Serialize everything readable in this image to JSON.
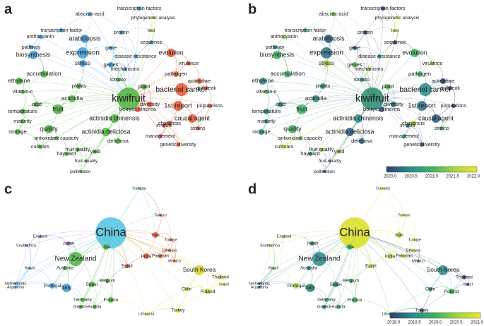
{
  "panels": [
    {
      "letter": "a",
      "nodes": [
        {
          "label": "kiwifruit",
          "color": "#4db33d"
        },
        {
          "label": "expression",
          "color": "#3e9ad6"
        },
        {
          "label": "biosynthesis",
          "color": "#3e9ad6"
        },
        {
          "label": "arabidopsis",
          "color": "#3e9ad6"
        },
        {
          "label": "abscisic-acid",
          "color": "#3e9ad6"
        },
        {
          "label": "transcription factors",
          "color": "#3e9ad6"
        },
        {
          "label": "phylogenetic analysis",
          "color": "#d4d41e"
        },
        {
          "label": "transcription factor",
          "color": "#3e9ad6"
        },
        {
          "label": "anthocyanin",
          "color": "#3e9ad6"
        },
        {
          "label": "pathway",
          "color": "#3e9ad6"
        },
        {
          "label": "protein",
          "color": "#3e9ad6"
        },
        {
          "label": "tool",
          "color": "#d4d41e"
        },
        {
          "label": "sequence",
          "color": "#3e9ad6"
        },
        {
          "label": "gene",
          "color": "#3e9ad6"
        },
        {
          "label": "evolution",
          "color": "#e8542f"
        },
        {
          "label": "disease resistance",
          "color": "#3e9ad6"
        },
        {
          "label": "stress",
          "color": "#3e9ad6"
        },
        {
          "label": "genes",
          "color": "#3e9ad6"
        },
        {
          "label": "mechanisms",
          "color": "#3e9ad6"
        },
        {
          "label": "accumulation",
          "color": "#4db33d"
        },
        {
          "label": "tomato",
          "color": "#4db33d"
        },
        {
          "label": "pathogen",
          "color": "#e8542f"
        },
        {
          "label": "virulence",
          "color": "#e8542f"
        },
        {
          "label": "actinidiae",
          "color": "#e8542f"
        },
        {
          "label": "outbreak",
          "color": "#e8542f"
        },
        {
          "label": "ethylene",
          "color": "#4db33d"
        },
        {
          "label": "plants",
          "color": "#4db33d"
        },
        {
          "label": "plant",
          "color": "#4db33d"
        },
        {
          "label": "bacterial canker",
          "color": "#e8542f"
        },
        {
          "label": "vitamin-c",
          "color": "#4db33d"
        },
        {
          "label": "acid",
          "color": "#4db33d"
        },
        {
          "label": "actinidia",
          "color": "#4db33d"
        },
        {
          "label": "diversity",
          "color": "#e8542f"
        },
        {
          "label": "1st report",
          "color": "#e8542f"
        },
        {
          "label": "populations",
          "color": "#e8542f"
        },
        {
          "label": "fruit",
          "color": "#4db33d"
        },
        {
          "label": "botrytis cinerea",
          "color": "#e8542f"
        },
        {
          "label": "actinidia chinensis",
          "color": "#4db33d"
        },
        {
          "label": "temperature",
          "color": "#4db33d"
        },
        {
          "label": "causal agent",
          "color": "#e8542f"
        },
        {
          "label": "maturity",
          "color": "#4db33d"
        },
        {
          "label": "quality",
          "color": "#4db33d"
        },
        {
          "label": "chinensis",
          "color": "#e8542f"
        },
        {
          "label": "in-vitro",
          "color": "#e8542f"
        },
        {
          "label": "strains",
          "color": "#e8542f"
        },
        {
          "label": "storage",
          "color": "#4db33d"
        },
        {
          "label": "actinidia deliciosa",
          "color": "#4db33d"
        },
        {
          "label": "antioxidant capacity",
          "color": "#4db33d"
        },
        {
          "label": "management",
          "color": "#e8542f"
        },
        {
          "label": "cultivars",
          "color": "#4db33d"
        },
        {
          "label": "deliciosa",
          "color": "#4db33d"
        },
        {
          "label": "fruit quality",
          "color": "#4db33d"
        },
        {
          "label": "genetic diversity",
          "color": "#e8542f"
        },
        {
          "label": "hayward",
          "color": "#4db33d"
        },
        {
          "label": "yield",
          "color": "#4db33d"
        },
        {
          "label": "fruit-quality",
          "color": "#4db33d"
        },
        {
          "label": "pollination",
          "color": "#4db33d"
        }
      ]
    },
    {
      "letter": "b",
      "nodes": [
        {
          "label": "kiwifruit",
          "color": "#2a8a6e"
        },
        {
          "label": "expression",
          "color": "#2a6f8a"
        },
        {
          "label": "biosynthesis",
          "color": "#3cb35f"
        },
        {
          "label": "arabidopsis",
          "color": "#2c5a7e"
        },
        {
          "label": "abscisic-acid",
          "color": "#5cc24a"
        },
        {
          "label": "transcription factors",
          "color": "#2c4a7e"
        },
        {
          "label": "phylogenetic analysis",
          "color": "#e8e82a"
        },
        {
          "label": "transcription factor",
          "color": "#3cb35f"
        },
        {
          "label": "anthocyanin",
          "color": "#a6d63a"
        },
        {
          "label": "pathway",
          "color": "#2a8a8a"
        },
        {
          "label": "protein",
          "color": "#2c4a7e"
        },
        {
          "label": "tool",
          "color": "#e8e82a"
        },
        {
          "label": "sequence",
          "color": "#2c3e6e"
        },
        {
          "label": "gene",
          "color": "#2c4a7e"
        },
        {
          "label": "evolution",
          "color": "#3cb35f"
        },
        {
          "label": "disease resistance",
          "color": "#2a8a8a"
        },
        {
          "label": "stress",
          "color": "#a6d63a"
        },
        {
          "label": "genes",
          "color": "#5cc24a"
        },
        {
          "label": "mechanisms",
          "color": "#a6d63a"
        },
        {
          "label": "accumulation",
          "color": "#3cb35f"
        },
        {
          "label": "tomato",
          "color": "#2a8a8a"
        },
        {
          "label": "pathogen",
          "color": "#3cb35f"
        },
        {
          "label": "virulence",
          "color": "#a6d63a"
        },
        {
          "label": "actinidiae",
          "color": "#2c3e6e"
        },
        {
          "label": "outbreak",
          "color": "#2c3e6e"
        },
        {
          "label": "ethylene",
          "color": "#2a8a8a"
        },
        {
          "label": "plants",
          "color": "#2a8a8a"
        },
        {
          "label": "plant",
          "color": "#5cc24a"
        },
        {
          "label": "bacterial canker",
          "color": "#2a8a8a"
        },
        {
          "label": "vitamin-c",
          "color": "#3cb35f"
        },
        {
          "label": "acid",
          "color": "#2a8a8a"
        },
        {
          "label": "actinidia",
          "color": "#2a8a8a"
        },
        {
          "label": "diversity",
          "color": "#2c5a7e"
        },
        {
          "label": "1st report",
          "color": "#2a6f8a"
        },
        {
          "label": "populations",
          "color": "#2c3e6e"
        },
        {
          "label": "fruit",
          "color": "#3cb35f"
        },
        {
          "label": "botrytis cinerea",
          "color": "#2c4a7e"
        },
        {
          "label": "actinidia chinensis",
          "color": "#2a8a8a"
        },
        {
          "label": "temperature",
          "color": "#2a8a8a"
        },
        {
          "label": "causal agent",
          "color": "#2c5a7e"
        },
        {
          "label": "maturity",
          "color": "#2a8a8a"
        },
        {
          "label": "quality",
          "color": "#3cb35f"
        },
        {
          "label": "chinensis",
          "color": "#a6d63a"
        },
        {
          "label": "in-vitro",
          "color": "#2a8a8a"
        },
        {
          "label": "strains",
          "color": "#3cb35f"
        },
        {
          "label": "storage",
          "color": "#2a8a8a"
        },
        {
          "label": "actinidia deliciosa",
          "color": "#2c5a7e"
        },
        {
          "label": "antioxidant capacity",
          "color": "#5cc24a"
        },
        {
          "label": "management",
          "color": "#3cb35f"
        },
        {
          "label": "cultivars",
          "color": "#e8e82a"
        },
        {
          "label": "deliciosa",
          "color": "#2c5a7e"
        },
        {
          "label": "fruit quality",
          "color": "#a6d63a"
        },
        {
          "label": "genetic diversity",
          "color": "#2c4a7e"
        },
        {
          "label": "hayward",
          "color": "#2a8a8a"
        },
        {
          "label": "yield",
          "color": "#a6d63a"
        },
        {
          "label": "fruit-quality",
          "color": "#2a8a8a"
        },
        {
          "label": "pollination",
          "color": "#2c3e6e"
        }
      ],
      "colorbar": {
        "ticks": [
          "2020.0",
          "2020.5",
          "2021.0",
          "2021.5",
          "2022.0"
        ],
        "colors": [
          "#2c3e6e",
          "#2a8a8a",
          "#3cb35f",
          "#a6d63a",
          "#e8e82a"
        ]
      }
    },
    {
      "letter": "c",
      "nodes": [
        {
          "label": "China",
          "color": "#4fc4e0"
        },
        {
          "label": "Canada",
          "color": "#4fc4e0"
        },
        {
          "label": "Taiwan",
          "color": "#e8542f"
        },
        {
          "label": "Japan",
          "color": "#8a6fd0"
        },
        {
          "label": "England",
          "color": "#8a6fd0"
        },
        {
          "label": "Southafrica",
          "color": "#8a6fd0"
        },
        {
          "label": "Iran",
          "color": "#e8542f"
        },
        {
          "label": "Turkiye",
          "color": "#e8542f"
        },
        {
          "label": "Usa",
          "color": "#4db33d"
        },
        {
          "label": "Ethiopia",
          "color": "#e8542f"
        },
        {
          "label": "India",
          "color": "#e8542f"
        },
        {
          "label": "Pakistan",
          "color": "#e8542f"
        },
        {
          "label": "New Zealand",
          "color": "#4db33d"
        },
        {
          "label": "Mexico",
          "color": "#e8542f"
        },
        {
          "label": "Brazil",
          "color": "#3e9ad6"
        },
        {
          "label": "Australia",
          "color": "#4db33d"
        },
        {
          "label": "Egypt",
          "color": "#e8542f"
        },
        {
          "label": "South Korea",
          "color": "#d4d41e"
        },
        {
          "label": "Netherlands",
          "color": "#3e9ad6"
        },
        {
          "label": "Argentina",
          "color": "#3e9ad6"
        },
        {
          "label": "Portugal",
          "color": "#3e9ad6"
        },
        {
          "label": "Spain",
          "color": "#4db33d"
        },
        {
          "label": "Belgium",
          "color": "#4db33d"
        },
        {
          "label": "Thailand",
          "color": "#d4d41e"
        },
        {
          "label": "Israel",
          "color": "#d4d41e"
        },
        {
          "label": "Italy",
          "color": "#3e9ad6"
        },
        {
          "label": "Chile",
          "color": "#d4d41e"
        },
        {
          "label": "Poland",
          "color": "#d4d41e"
        },
        {
          "label": "Germany",
          "color": "#4db33d"
        },
        {
          "label": "France",
          "color": "#4db33d"
        },
        {
          "label": "Greece",
          "color": "#4db33d"
        },
        {
          "label": "Austria",
          "color": "#4db33d"
        },
        {
          "label": "Turkey",
          "color": "#d4d41e"
        },
        {
          "label": "Lithuania",
          "color": "#d4d41e"
        }
      ]
    },
    {
      "letter": "d",
      "nodes": [
        {
          "label": "China",
          "color": "#d8e020"
        },
        {
          "label": "Canada",
          "color": "#e8e82a"
        },
        {
          "label": "Taiwan",
          "color": "#e8e82a"
        },
        {
          "label": "Japan",
          "color": "#2a8a8a"
        },
        {
          "label": "England",
          "color": "#a6d63a"
        },
        {
          "label": "Southafrica",
          "color": "#a6d63a"
        },
        {
          "label": "Iran",
          "color": "#a6d63a"
        },
        {
          "label": "Turkiye",
          "color": "#e8e82a"
        },
        {
          "label": "Usa",
          "color": "#3cb35f"
        },
        {
          "label": "Ethiopia",
          "color": "#e8e82a"
        },
        {
          "label": "India",
          "color": "#d8e020"
        },
        {
          "label": "Pakistan",
          "color": "#e8e82a"
        },
        {
          "label": "New Zealand",
          "color": "#2a8a8a"
        },
        {
          "label": "Mexico",
          "color": "#2a6f8a"
        },
        {
          "label": "Brazil",
          "color": "#3cb35f"
        },
        {
          "label": "Australia",
          "color": "#2a8a8a"
        },
        {
          "label": "Egypt",
          "color": "#e8e82a"
        },
        {
          "label": "South Korea",
          "color": "#2a8a8a"
        },
        {
          "label": "Netherlands",
          "color": "#2a6f8a"
        },
        {
          "label": "Argentina",
          "color": "#2a6f8a"
        },
        {
          "label": "Portugal",
          "color": "#a6d63a"
        },
        {
          "label": "Spain",
          "color": "#2a8a8a"
        },
        {
          "label": "Belgium",
          "color": "#3cb35f"
        },
        {
          "label": "Thailand",
          "color": "#2c4a7e"
        },
        {
          "label": "Israel",
          "color": "#2c4a7e"
        },
        {
          "label": "Italy",
          "color": "#2a8a6e"
        },
        {
          "label": "Chile",
          "color": "#2a8a8a"
        },
        {
          "label": "Poland",
          "color": "#3cb35f"
        },
        {
          "label": "Germany",
          "color": "#3cb35f"
        },
        {
          "label": "France",
          "color": "#3cb35f"
        },
        {
          "label": "Greece",
          "color": "#2a8a8a"
        },
        {
          "label": "Austria",
          "color": "#3cb35f"
        },
        {
          "label": "Turkey",
          "color": "#2c4a7e"
        },
        {
          "label": "Lithuania",
          "color": "#3cb35f"
        }
      ],
      "colorbar": {
        "ticks": [
          "2019.0",
          "2019.5",
          "2020.0",
          "2020.5",
          "2021.0"
        ],
        "colors": [
          "#2c3e6e",
          "#2a8a8a",
          "#3cb35f",
          "#a6d63a",
          "#e8e82a"
        ]
      }
    }
  ]
}
